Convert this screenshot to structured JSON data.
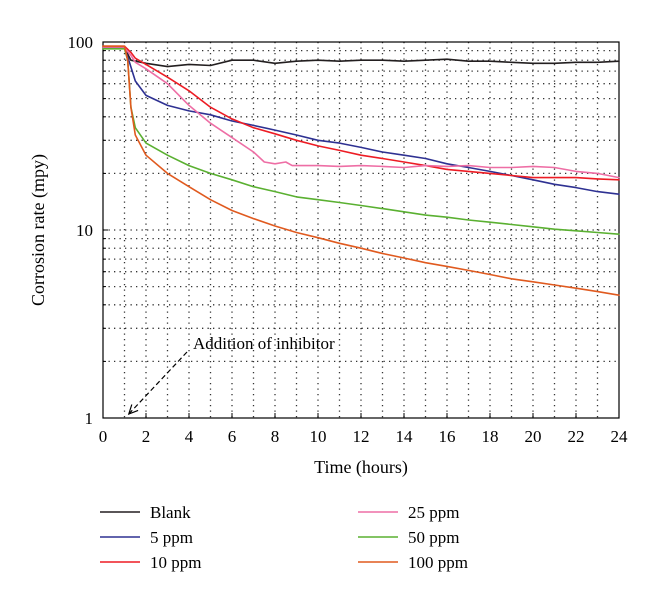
{
  "chart_data": {
    "type": "line",
    "xlabel": "Time (hours)",
    "ylabel": "Corrosion rate (mpy)",
    "xlim": [
      0,
      24
    ],
    "ylim": [
      1,
      100
    ],
    "yscale": "log",
    "grid": "dotted",
    "legend_placement": "bottom",
    "x_ticks": [
      "0",
      "2",
      "4",
      "6",
      "8",
      "10",
      "12",
      "14",
      "16",
      "18",
      "20",
      "22",
      "24"
    ],
    "y_ticks": [
      "1",
      "10",
      "100"
    ],
    "annotation": {
      "text": "Addition of inhibitor",
      "x": 1.2,
      "y": 1.0
    },
    "series": [
      {
        "name": "Blank",
        "color": "#231f20",
        "points": [
          [
            0,
            93
          ],
          [
            0.5,
            94
          ],
          [
            1,
            93
          ],
          [
            1.3,
            80
          ],
          [
            2,
            77
          ],
          [
            3,
            74
          ],
          [
            4,
            76
          ],
          [
            5,
            75
          ],
          [
            6,
            80
          ],
          [
            7,
            80
          ],
          [
            8,
            77
          ],
          [
            9,
            79
          ],
          [
            10,
            80
          ],
          [
            11,
            79
          ],
          [
            12,
            80
          ],
          [
            13,
            80
          ],
          [
            14,
            79
          ],
          [
            15,
            80
          ],
          [
            16,
            81
          ],
          [
            17,
            79
          ],
          [
            18,
            79
          ],
          [
            19,
            78
          ],
          [
            20,
            77
          ],
          [
            21,
            77
          ],
          [
            22,
            78
          ],
          [
            23,
            78
          ],
          [
            24,
            79
          ]
        ]
      },
      {
        "name": "5 ppm",
        "color": "#2e3192",
        "points": [
          [
            0,
            93
          ],
          [
            1,
            93
          ],
          [
            1.2,
            80
          ],
          [
            1.5,
            62
          ],
          [
            2,
            52
          ],
          [
            3,
            46
          ],
          [
            4,
            43
          ],
          [
            5,
            41
          ],
          [
            6,
            38
          ],
          [
            7,
            36
          ],
          [
            8,
            34
          ],
          [
            9,
            32
          ],
          [
            10,
            30
          ],
          [
            11,
            29
          ],
          [
            12,
            27.5
          ],
          [
            13,
            26
          ],
          [
            14,
            25
          ],
          [
            15,
            24
          ],
          [
            16,
            22.5
          ],
          [
            17,
            21.5
          ],
          [
            18,
            20.5
          ],
          [
            19,
            19.5
          ],
          [
            20,
            18.5
          ],
          [
            21,
            17.5
          ],
          [
            22,
            16.8
          ],
          [
            23,
            16
          ],
          [
            24,
            15.5
          ]
        ]
      },
      {
        "name": "10 ppm",
        "color": "#ed1c24",
        "points": [
          [
            0,
            95
          ],
          [
            1,
            95
          ],
          [
            1.3,
            88
          ],
          [
            1.5,
            82
          ],
          [
            2,
            76
          ],
          [
            3,
            65
          ],
          [
            4,
            55
          ],
          [
            5,
            45
          ],
          [
            6,
            39
          ],
          [
            7,
            35
          ],
          [
            8,
            32.5
          ],
          [
            9,
            30
          ],
          [
            10,
            28
          ],
          [
            11,
            26.5
          ],
          [
            12,
            25
          ],
          [
            13,
            24
          ],
          [
            14,
            23
          ],
          [
            15,
            22
          ],
          [
            16,
            21
          ],
          [
            17,
            20.5
          ],
          [
            18,
            20
          ],
          [
            19,
            19.5
          ],
          [
            20,
            19
          ],
          [
            21,
            19
          ],
          [
            22,
            19
          ],
          [
            23,
            18.7
          ],
          [
            24,
            18.5
          ]
        ]
      },
      {
        "name": "25 ppm",
        "color": "#ee6ea5",
        "points": [
          [
            0,
            93
          ],
          [
            1,
            93
          ],
          [
            1.3,
            85
          ],
          [
            1.5,
            78
          ],
          [
            2,
            72
          ],
          [
            3,
            60
          ],
          [
            4,
            46
          ],
          [
            5,
            37
          ],
          [
            6,
            31
          ],
          [
            7,
            26
          ],
          [
            7.5,
            23
          ],
          [
            8,
            22.5
          ],
          [
            8.5,
            23
          ],
          [
            8.8,
            22
          ],
          [
            10,
            22
          ],
          [
            11,
            21.8
          ],
          [
            12,
            22
          ],
          [
            13,
            21.8
          ],
          [
            14,
            21.5
          ],
          [
            15,
            22
          ],
          [
            16,
            21.8
          ],
          [
            17,
            22
          ],
          [
            18,
            21.5
          ],
          [
            19,
            21.5
          ],
          [
            20,
            21.8
          ],
          [
            21,
            21.5
          ],
          [
            22,
            20.5
          ],
          [
            23,
            20
          ],
          [
            24,
            19
          ]
        ]
      },
      {
        "name": "50 ppm",
        "color": "#5ab031",
        "points": [
          [
            0,
            92
          ],
          [
            1,
            92
          ],
          [
            1.15,
            80
          ],
          [
            1.3,
            45
          ],
          [
            1.5,
            35
          ],
          [
            2,
            29
          ],
          [
            3,
            25
          ],
          [
            4,
            22
          ],
          [
            5,
            20
          ],
          [
            6,
            18.5
          ],
          [
            7,
            17
          ],
          [
            8,
            16
          ],
          [
            9,
            15
          ],
          [
            10,
            14.5
          ],
          [
            11,
            14
          ],
          [
            12,
            13.5
          ],
          [
            13,
            13
          ],
          [
            14,
            12.5
          ],
          [
            15,
            12
          ],
          [
            16,
            11.7
          ],
          [
            17,
            11.3
          ],
          [
            18,
            11
          ],
          [
            19,
            10.7
          ],
          [
            20,
            10.4
          ],
          [
            21,
            10.1
          ],
          [
            22,
            9.9
          ],
          [
            23,
            9.7
          ],
          [
            24,
            9.5
          ]
        ]
      },
      {
        "name": "100 ppm",
        "color": "#e05a1f",
        "points": [
          [
            0,
            95
          ],
          [
            1,
            95
          ],
          [
            1.15,
            80
          ],
          [
            1.3,
            45
          ],
          [
            1.5,
            32
          ],
          [
            2,
            25
          ],
          [
            3,
            20
          ],
          [
            4,
            17
          ],
          [
            5,
            14.5
          ],
          [
            6,
            12.7
          ],
          [
            7,
            11.5
          ],
          [
            8,
            10.5
          ],
          [
            9,
            9.7
          ],
          [
            10,
            9.1
          ],
          [
            11,
            8.5
          ],
          [
            12,
            8
          ],
          [
            13,
            7.5
          ],
          [
            14,
            7.1
          ],
          [
            15,
            6.7
          ],
          [
            16,
            6.4
          ],
          [
            17,
            6.1
          ],
          [
            18,
            5.8
          ],
          [
            19,
            5.5
          ],
          [
            20,
            5.3
          ],
          [
            21,
            5.1
          ],
          [
            22,
            4.9
          ],
          [
            23,
            4.7
          ],
          [
            24,
            4.5
          ]
        ]
      }
    ]
  }
}
